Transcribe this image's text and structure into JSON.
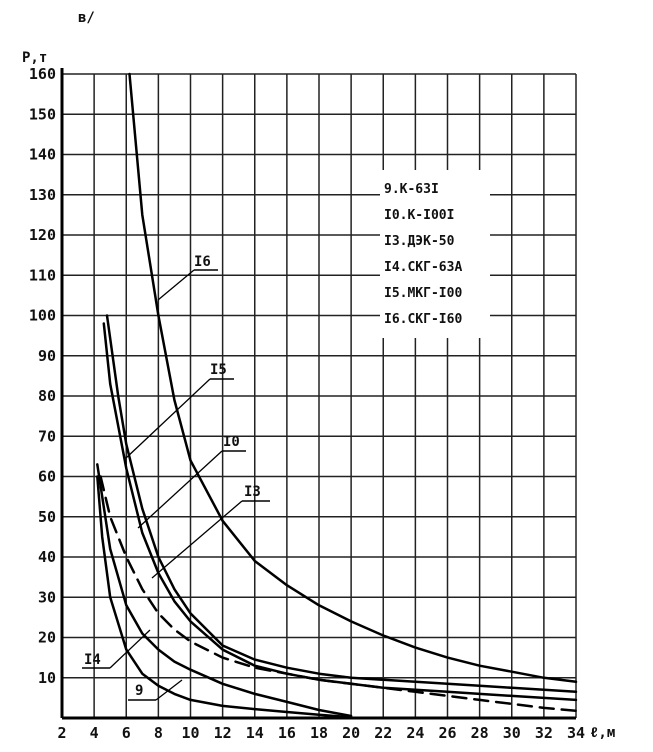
{
  "panel_label": "в/",
  "chart_data": {
    "type": "line",
    "ylabel": "P,т",
    "xlabel": "ℓ,м",
    "xlim": [
      2,
      34
    ],
    "ylim": [
      0,
      160
    ],
    "x_ticks": [
      "2",
      "4",
      "6",
      "8",
      "10",
      "12",
      "14",
      "16",
      "18",
      "20",
      "22",
      "24",
      "26",
      "28",
      "30",
      "32",
      "34"
    ],
    "y_ticks": [
      "10",
      "20",
      "30",
      "40",
      "50",
      "60",
      "70",
      "80",
      "90",
      "100",
      "110",
      "120",
      "130",
      "140",
      "150",
      "160"
    ],
    "grid": true,
    "legend": [
      "9.К-63I",
      "I0.К-I00I",
      "I3.ДЭК-50",
      "I4.СКГ-63А",
      "I5.МКГ-I00",
      "I6.СКГ-I60"
    ],
    "legend_position": "right",
    "curve_labels": [
      {
        "text": "I6",
        "series": "I6"
      },
      {
        "text": "I5",
        "series": "I5"
      },
      {
        "text": "I0",
        "series": "I0"
      },
      {
        "text": "I3",
        "series": "I3"
      },
      {
        "text": "I4",
        "series": "I4"
      },
      {
        "text": "9",
        "series": "9"
      }
    ],
    "series": [
      {
        "name": "I6",
        "dashed": false,
        "x": [
          6.2,
          7,
          8,
          9,
          10,
          12,
          14,
          16,
          18,
          20,
          22,
          24,
          26,
          28,
          30,
          32,
          34
        ],
        "y": [
          160,
          125,
          100,
          79,
          64,
          49,
          39,
          33,
          28,
          24,
          20.5,
          17.5,
          15,
          13,
          11.5,
          10,
          9
        ]
      },
      {
        "name": "I5",
        "dashed": false,
        "x": [
          4.8,
          5.5,
          6,
          7,
          8,
          9,
          10,
          12,
          14,
          16,
          18,
          20,
          22,
          24,
          26,
          28,
          30,
          32,
          34
        ],
        "y": [
          100,
          80,
          68,
          52,
          40,
          32,
          26,
          18,
          14.5,
          12.5,
          11,
          10,
          9.5,
          9,
          8.5,
          8,
          7.5,
          7,
          6.5
        ]
      },
      {
        "name": "I0",
        "dashed": false,
        "x": [
          4.6,
          5,
          6,
          7,
          8,
          9,
          10,
          12,
          14,
          16,
          18,
          20,
          22,
          24,
          26,
          28,
          30,
          32,
          34
        ],
        "y": [
          98,
          83,
          62,
          46,
          36,
          29,
          24,
          17,
          13,
          11,
          9.5,
          8.5,
          7.5,
          7,
          6.5,
          6,
          5.5,
          5,
          4.5
        ]
      },
      {
        "name": "I3",
        "dashed": true,
        "x": [
          4.4,
          5,
          6,
          7,
          8,
          9,
          10,
          12,
          14,
          16,
          18,
          20,
          22,
          24,
          26,
          28,
          30,
          32,
          34
        ],
        "y": [
          60,
          50,
          40,
          32,
          26,
          22,
          19,
          15,
          12.5,
          11,
          9.5,
          8.5,
          7.5,
          6.5,
          5.5,
          4.5,
          3.5,
          2.5,
          1.8
        ]
      },
      {
        "name": "I4",
        "dashed": false,
        "x": [
          4.2,
          4.5,
          5,
          6,
          7,
          8,
          9,
          10,
          12,
          14,
          16,
          18,
          20
        ],
        "y": [
          63,
          55,
          42,
          28,
          21,
          17,
          14,
          12,
          8.5,
          6,
          4,
          2,
          0.5
        ]
      },
      {
        "name": "9",
        "dashed": false,
        "x": [
          4.2,
          4.5,
          5,
          6,
          7,
          8,
          9,
          10,
          12,
          14,
          16,
          18,
          20
        ],
        "y": [
          60,
          45,
          30,
          17,
          11,
          8,
          6,
          4.5,
          3,
          2.2,
          1.5,
          0.8,
          0.2
        ]
      }
    ]
  }
}
